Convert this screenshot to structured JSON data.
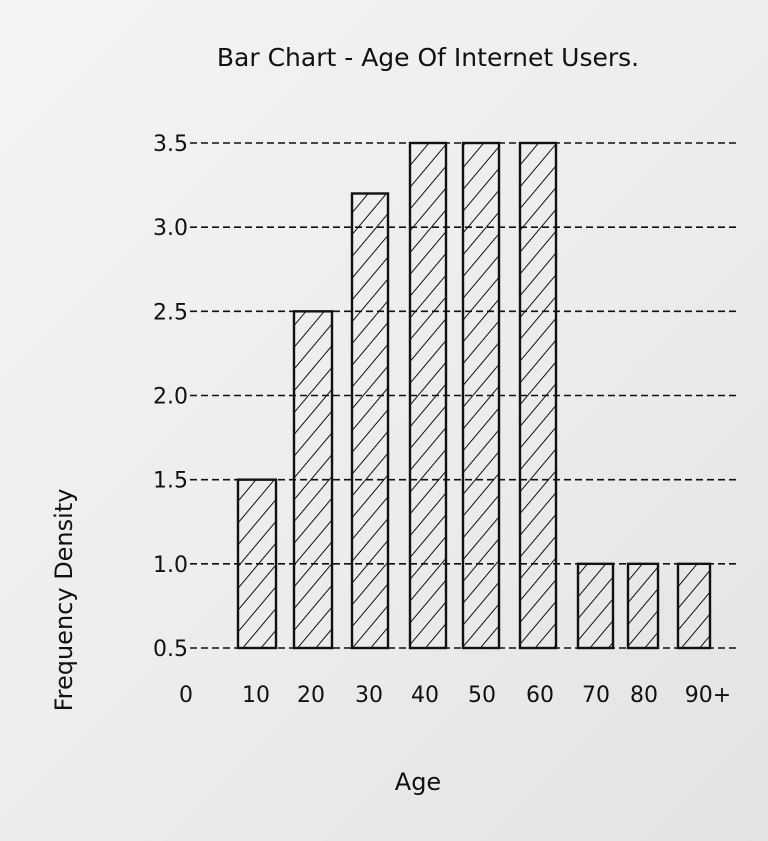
{
  "chart_data": {
    "type": "bar",
    "title": "Bar Chart - Age Of Internet Users.",
    "xlabel": "Age",
    "ylabel": "Frequency Density",
    "x_tick_labels": [
      "0",
      "10",
      "20",
      "30",
      "40",
      "50",
      "60",
      "70",
      "80",
      "90+"
    ],
    "y_ticks": [
      "0.5",
      "1.0",
      "1.5",
      "2.0",
      "2.5",
      "3.0",
      "3.5"
    ],
    "ylim": [
      0.5,
      3.5
    ],
    "grid": true,
    "bars": [
      {
        "x_start": 10,
        "x_end": 20,
        "value": 1.5
      },
      {
        "x_start": 20,
        "x_end": 30,
        "value": 2.5
      },
      {
        "x_start": 30,
        "x_end": 40,
        "value": 3.2
      },
      {
        "x_start": 40,
        "x_end": 50,
        "value": 3.5
      },
      {
        "x_start": 50,
        "x_end": 60,
        "value": 3.5
      },
      {
        "x_start": 60,
        "x_end": 70,
        "value": 3.5
      },
      {
        "x_start": 70,
        "x_end": 80,
        "value": 1.0
      },
      {
        "x_start": 80,
        "x_end": 90,
        "value": 1.0
      },
      {
        "x_start": 90,
        "x_end": 100,
        "value": 1.0
      }
    ],
    "colors": {
      "ink": "#111111",
      "paper": "#f2f2f0"
    }
  }
}
